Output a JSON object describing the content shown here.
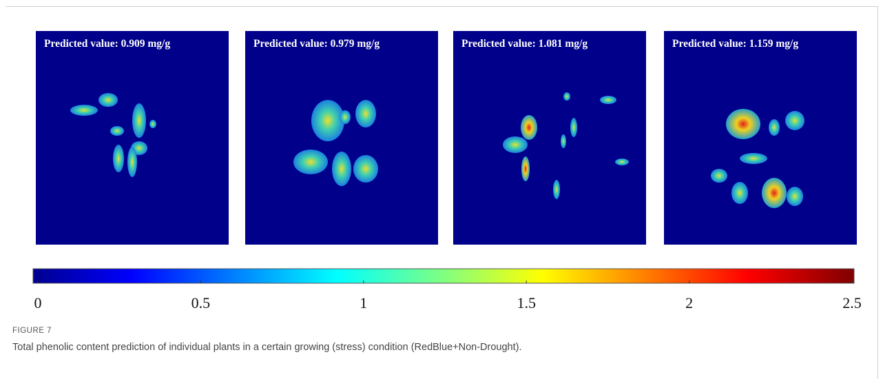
{
  "panels": [
    {
      "title": "Predicted value: 0.909 mg/g"
    },
    {
      "title": "Predicted value: 0.979 mg/g"
    },
    {
      "title": "Predicted value: 1.081 mg/g"
    },
    {
      "title": "Predicted value: 1.159 mg/g"
    }
  ],
  "colorbar": {
    "range": [
      0,
      2.5
    ],
    "ticks": [
      0,
      0.5,
      1,
      1.5,
      2,
      2.5
    ]
  },
  "figure_label": "FIGURE 7",
  "caption": "Total phenolic content prediction of individual plants in a certain growing (stress) condition (RedBlue+Non-Drought)."
}
